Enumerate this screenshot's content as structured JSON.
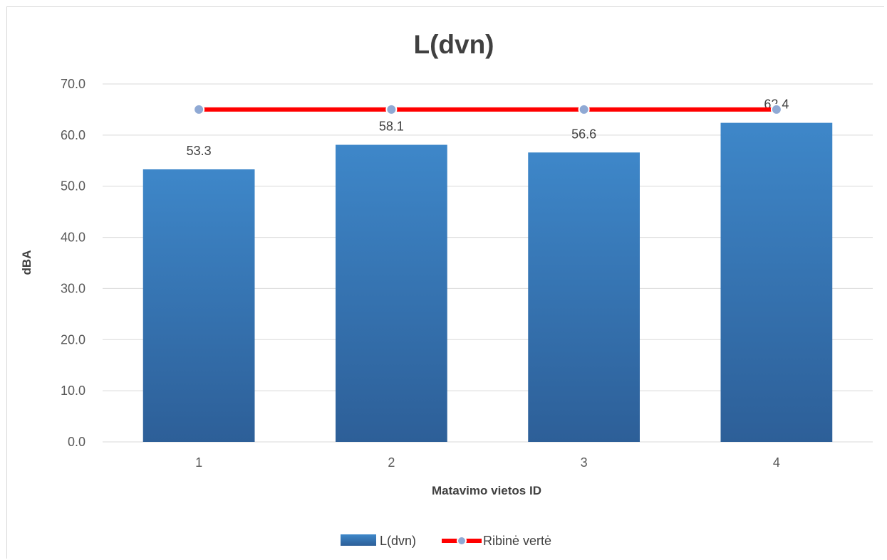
{
  "chart_data": {
    "type": "bar",
    "title": "L(dvn)",
    "xlabel": "Matavimo vietos ID",
    "ylabel": "dBA",
    "categories": [
      "1",
      "2",
      "3",
      "4"
    ],
    "ylim": [
      0,
      70
    ],
    "yticks": [
      "0.0",
      "10.0",
      "20.0",
      "30.0",
      "40.0",
      "50.0",
      "60.0",
      "70.0"
    ],
    "grid": true,
    "legend_position": "bottom",
    "series": [
      {
        "name": "L(dvn)",
        "kind": "bar",
        "values": [
          53.3,
          58.1,
          56.6,
          62.4
        ],
        "labels": [
          "53.3",
          "58.1",
          "56.6",
          "62.4"
        ],
        "color": "#3a7dbf"
      },
      {
        "name": "Ribinė vertė",
        "kind": "line",
        "values": [
          65,
          65,
          65,
          65
        ],
        "color": "#ff0000",
        "marker_color": "#8fa9d4"
      }
    ]
  }
}
